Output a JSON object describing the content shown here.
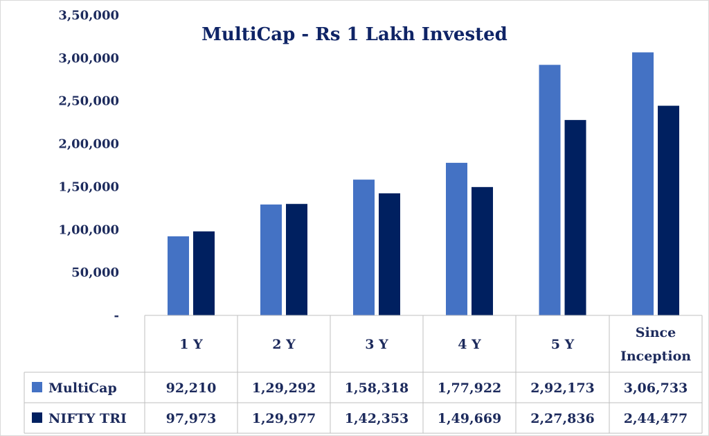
{
  "chart_data": {
    "type": "bar",
    "title": "MultiCap - Rs 1 Lakh Invested",
    "categories": [
      "1 Y",
      "2 Y",
      "3 Y",
      "4 Y",
      "5 Y",
      "Since Inception"
    ],
    "series": [
      {
        "name": "MultiCap",
        "color": "#4472c4",
        "values": [
          92210,
          129292,
          158318,
          177922,
          292173,
          306733
        ],
        "labels": [
          "92,210",
          "1,29,292",
          "1,58,318",
          "1,77,922",
          "2,92,173",
          "3,06,733"
        ]
      },
      {
        "name": "NIFTY TRI",
        "color": "#002060",
        "values": [
          97973,
          129977,
          142353,
          149669,
          227836,
          244477
        ],
        "labels": [
          "97,973",
          "1,29,977",
          "1,42,353",
          "1,49,669",
          "2,27,836",
          "2,44,477"
        ]
      }
    ],
    "ylim": [
      0,
      350000
    ],
    "yticks": [
      {
        "value": 0,
        "label": "-"
      },
      {
        "value": 50000,
        "label": "50,000"
      },
      {
        "value": 100000,
        "label": "1,00,000"
      },
      {
        "value": 150000,
        "label": "1,50,000"
      },
      {
        "value": 200000,
        "label": "2,00,000"
      },
      {
        "value": 250000,
        "label": "2,50,000"
      },
      {
        "value": 300000,
        "label": "3,00,000"
      },
      {
        "value": 350000,
        "label": "3,50,000"
      }
    ],
    "data_table": true,
    "grid": false,
    "legend": "data-table-left"
  }
}
